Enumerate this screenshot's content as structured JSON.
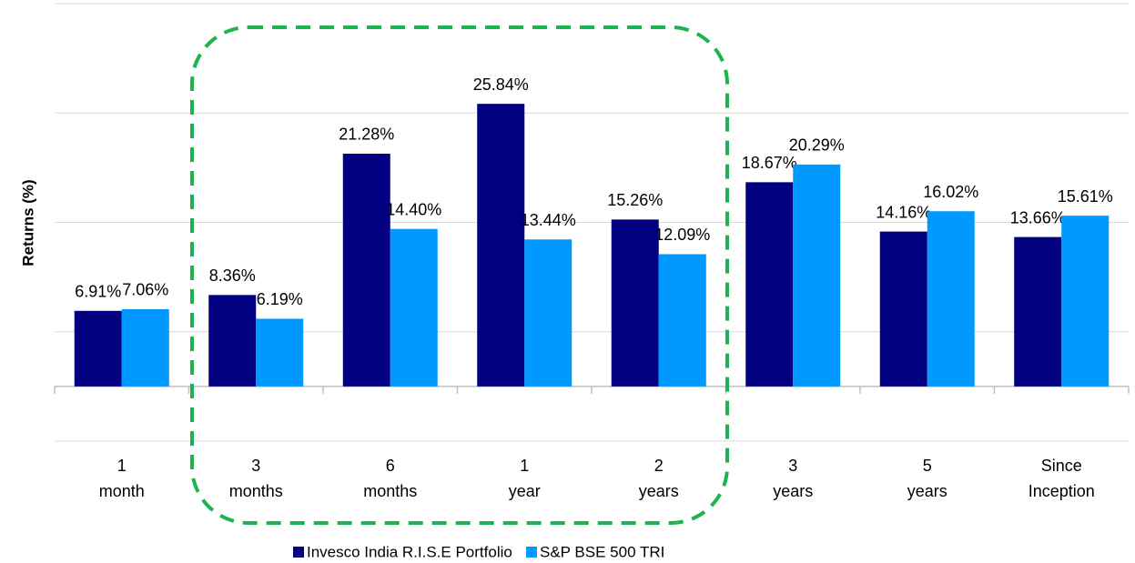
{
  "chart_data": {
    "type": "bar",
    "y_label": "Returns (%)",
    "categories": [
      [
        "1",
        "month"
      ],
      [
        "3",
        "months"
      ],
      [
        "6",
        "months"
      ],
      [
        "1",
        "year"
      ],
      [
        "2",
        "years"
      ],
      [
        "3",
        "years"
      ],
      [
        "5",
        "years"
      ],
      [
        "Since",
        "Inception"
      ]
    ],
    "series": [
      {
        "name": "Invesco India R.I.S.E Portfolio",
        "color": "#000080",
        "values": [
          6.91,
          8.36,
          21.28,
          25.84,
          15.26,
          18.67,
          14.16,
          13.66
        ],
        "value_labels": [
          "6.91%",
          "8.36%",
          "21.28%",
          "25.84%",
          "15.26%",
          "18.67%",
          "14.16%",
          "13.66%"
        ]
      },
      {
        "name": "S&P BSE 500 TRI",
        "color": "#0099ff",
        "values": [
          7.06,
          6.19,
          14.4,
          13.44,
          12.09,
          20.29,
          16.02,
          15.61
        ],
        "value_labels": [
          "7.06%",
          "6.19%",
          "14.40%",
          "13.44%",
          "12.09%",
          "20.29%",
          "16.02%",
          "15.61%"
        ]
      }
    ],
    "ylim": [
      -5,
      35
    ],
    "yticks": [
      -5,
      5,
      15,
      25,
      35
    ],
    "grid": true
  }
}
